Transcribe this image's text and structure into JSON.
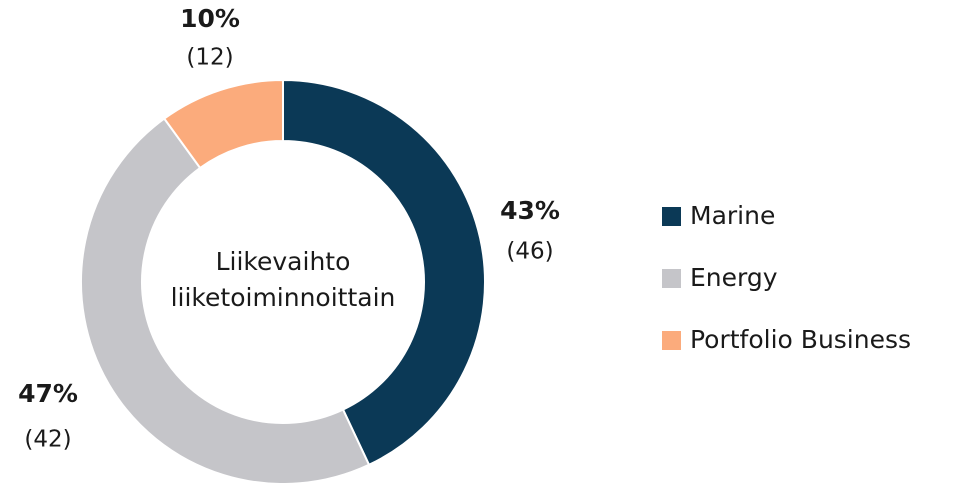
{
  "chart_data": {
    "type": "donut",
    "center_text": [
      "Liikevaihto",
      "liiketoiminnoittain"
    ],
    "categories": [
      "Marine",
      "Energy",
      "Portfolio Business"
    ],
    "values": [
      43,
      47,
      10
    ],
    "value_labels": [
      "43%",
      "47%",
      "10%"
    ],
    "comparison_labels": [
      "(46)",
      "(42)",
      "(12)"
    ],
    "colors": [
      "#0b3956",
      "#c5c5c9",
      "#fbab7c"
    ],
    "legend": "right"
  }
}
